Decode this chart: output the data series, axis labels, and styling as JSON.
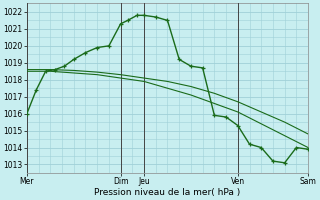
{
  "xlabel": "Pression niveau de la mer( hPa )",
  "background_color": "#c8eef0",
  "grid_color": "#a0d0d8",
  "line_color": "#1a6b1a",
  "ylim": [
    1012.5,
    1022.5
  ],
  "yticks": [
    1013,
    1014,
    1015,
    1016,
    1017,
    1018,
    1019,
    1020,
    1021,
    1022
  ],
  "xlim": [
    0,
    12
  ],
  "xtick_positions": [
    0,
    4,
    5,
    9,
    12
  ],
  "xtick_labels": [
    "Mer",
    "Dim",
    "Jeu",
    "Ven",
    "Sam"
  ],
  "vlines_x": [
    0,
    4,
    5,
    9,
    12
  ],
  "vline_color": "#444444",
  "line1_x": [
    0,
    0.4,
    0.8,
    1.2,
    1.6,
    2.0,
    2.5,
    3.0,
    3.5,
    4.0,
    4.3,
    4.7,
    5.0,
    5.5,
    6.0,
    6.5,
    7.0,
    7.5,
    8.0,
    8.5,
    9.0,
    9.5,
    10.0,
    10.5,
    11.0,
    11.5,
    12.0
  ],
  "line1_y": [
    1016.0,
    1017.4,
    1018.5,
    1018.6,
    1018.8,
    1019.2,
    1019.6,
    1019.9,
    1020.0,
    1021.3,
    1021.5,
    1021.8,
    1021.8,
    1021.7,
    1021.5,
    1019.2,
    1018.8,
    1018.7,
    1015.9,
    1015.8,
    1015.3,
    1014.2,
    1014.0,
    1013.2,
    1013.1,
    1014.0,
    1013.9
  ],
  "line2_x": [
    0,
    1,
    2,
    3,
    4,
    5,
    6,
    7,
    8,
    9,
    10,
    11,
    12
  ],
  "line2_y": [
    1018.6,
    1018.6,
    1018.55,
    1018.45,
    1018.3,
    1018.1,
    1017.9,
    1017.6,
    1017.2,
    1016.7,
    1016.1,
    1015.5,
    1014.8
  ],
  "line3_x": [
    0,
    1,
    2,
    3,
    4,
    5,
    6,
    7,
    8,
    9,
    10,
    11,
    12
  ],
  "line3_y": [
    1018.5,
    1018.5,
    1018.4,
    1018.3,
    1018.1,
    1017.9,
    1017.5,
    1017.1,
    1016.6,
    1016.1,
    1015.4,
    1014.7,
    1014.0
  ]
}
